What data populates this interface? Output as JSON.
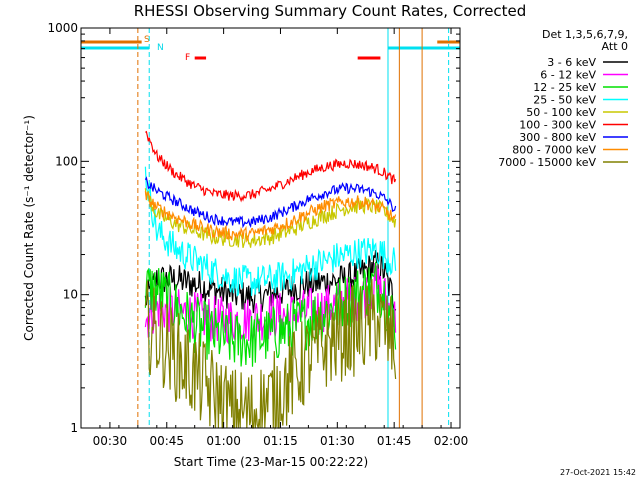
{
  "chart_data": {
    "type": "line",
    "title": "RHESSI Observing Summary Count Rates, Corrected",
    "xlabel": "Start Time (23-Mar-15 00:22:22)",
    "ylabel": "Corrected Count Rate (s⁻¹ detector⁻¹)",
    "x_ticks": [
      "00:30",
      "00:45",
      "01:00",
      "01:15",
      "01:30",
      "01:45",
      "02:00"
    ],
    "y_ticks": [
      "1",
      "10",
      "100",
      "1000"
    ],
    "yscale": "log",
    "ylim": [
      1,
      1000
    ],
    "xlim_minutes_after_start": [
      0,
      100
    ],
    "x_unit": "minutes after 00:22:22",
    "legend_header": [
      "Det 1,3,5,6,7,9,",
      "Att 0"
    ],
    "legend_position": "right",
    "footer": "27-Oct-2021 15:42",
    "flags": [
      {
        "label": "S",
        "color": "#e07000"
      },
      {
        "label": "N",
        "color": "#00d8e8"
      },
      {
        "label": "F",
        "color": "#ff0000"
      }
    ],
    "flag_bars": [
      {
        "name": "saa",
        "color": "#e07000",
        "segments": [
          [
            0,
            16
          ],
          [
            94,
            100
          ]
        ]
      },
      {
        "name": "night",
        "color": "#00e0f0",
        "segments": [
          [
            0,
            18
          ],
          [
            81,
            100
          ]
        ]
      },
      {
        "name": "flare",
        "color": "#ff0000",
        "segments": [
          [
            30,
            33
          ],
          [
            73,
            79
          ]
        ]
      }
    ],
    "vlines": [
      {
        "x": 15,
        "color": "#e07000",
        "style": "dashed"
      },
      {
        "x": 18,
        "color": "#00e0f0",
        "style": "dashed"
      },
      {
        "x": 81,
        "color": "#00e0f0",
        "style": "solid"
      },
      {
        "x": 84,
        "color": "#e07000",
        "style": "solid"
      },
      {
        "x": 90,
        "color": "#e07000",
        "style": "solid"
      },
      {
        "x": 97,
        "color": "#00e0f0",
        "style": "dashed"
      }
    ],
    "x": [
      17,
      20,
      25,
      30,
      35,
      40,
      45,
      50,
      55,
      60,
      65,
      70,
      75,
      78,
      80,
      81,
      83
    ],
    "series": [
      {
        "name": "3 - 6 keV",
        "color": "#000000",
        "values": [
          9,
          13,
          13,
          12,
          11,
          10,
          9.5,
          10,
          11,
          12,
          12.5,
          13,
          15,
          17,
          15,
          12,
          9
        ]
      },
      {
        "name": "6 - 12 keV",
        "color": "#ff00ff",
        "values": [
          6.5,
          8,
          7.5,
          7,
          6.5,
          6.5,
          6.5,
          7,
          7,
          7.5,
          8,
          9,
          10,
          12,
          10,
          8,
          6.5
        ]
      },
      {
        "name": "12 - 25 keV",
        "color": "#00e000",
        "values": [
          11,
          11,
          8,
          6,
          5,
          4.5,
          4.5,
          5,
          5.5,
          6.5,
          7.5,
          9,
          11,
          12,
          10,
          8,
          6
        ]
      },
      {
        "name": "25 - 50 keV",
        "color": "#00ffff",
        "values": [
          80,
          30,
          22,
          18,
          15,
          13,
          12.5,
          13,
          14,
          16,
          18,
          20,
          21,
          22,
          20,
          19,
          17
        ]
      },
      {
        "name": "50 - 100 keV",
        "color": "#c8c800",
        "values": [
          60,
          40,
          34,
          30,
          27,
          26,
          25.5,
          27,
          30,
          35,
          40,
          45,
          47,
          45,
          42,
          40,
          35
        ]
      },
      {
        "name": "100 - 300 keV",
        "color": "#ff0000",
        "values": [
          170,
          110,
          80,
          65,
          57,
          55,
          56,
          62,
          72,
          83,
          92,
          97,
          93,
          88,
          82,
          78,
          70
        ]
      },
      {
        "name": "300 - 800 keV",
        "color": "#0000ff",
        "values": [
          70,
          60,
          50,
          42,
          37,
          35,
          35,
          38,
          44,
          52,
          59,
          63,
          61,
          57,
          53,
          50,
          43
        ]
      },
      {
        "name": "800 - 7000 keV",
        "color": "#ff8c00",
        "values": [
          55,
          45,
          38,
          33,
          30,
          28.5,
          28.5,
          31,
          35,
          41,
          47,
          50,
          49,
          46,
          43,
          41,
          36
        ]
      },
      {
        "name": "7000 - 15000 keV",
        "color": "#808000",
        "values": [
          6,
          5,
          3.5,
          2.5,
          1.8,
          1.3,
          1.3,
          1.6,
          2.3,
          3.3,
          4.3,
          5.2,
          5.6,
          6.5,
          5.5,
          5,
          4
        ]
      }
    ]
  }
}
